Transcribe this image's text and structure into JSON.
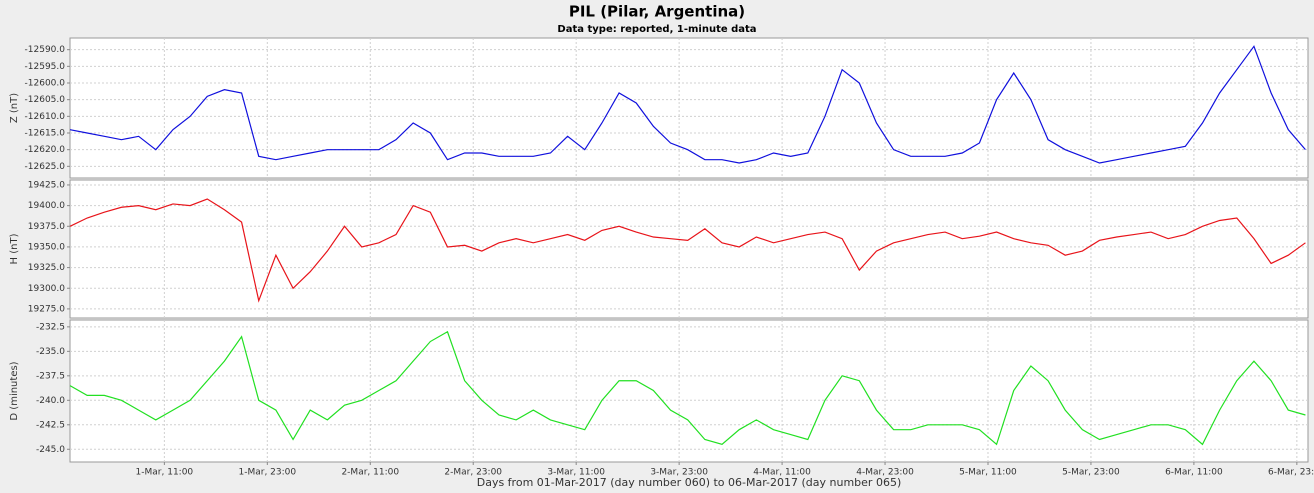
{
  "chart_data": {
    "type": "line",
    "title": "PIL (Pilar, Argentina)",
    "subtitle": "Data type: reported, 1-minute data",
    "xlabel": "Days from 01-Mar-2017 (day number 060) to 06-Mar-2017 (day number 065)",
    "xlim": [
      0,
      144.3
    ],
    "xticks": [
      {
        "value": 11,
        "label": "1-Mar, 11:00"
      },
      {
        "value": 23,
        "label": "1-Mar, 23:00"
      },
      {
        "value": 35,
        "label": "2-Mar, 11:00"
      },
      {
        "value": 47,
        "label": "2-Mar, 23:00"
      },
      {
        "value": 59,
        "label": "3-Mar, 11:00"
      },
      {
        "value": 71,
        "label": "3-Mar, 23:00"
      },
      {
        "value": 83,
        "label": "4-Mar, 11:00"
      },
      {
        "value": 95,
        "label": "4-Mar, 23:00"
      },
      {
        "value": 107,
        "label": "5-Mar, 11:00"
      },
      {
        "value": 119,
        "label": "5-Mar, 23:00"
      },
      {
        "value": 131,
        "label": "6-Mar, 11:00"
      },
      {
        "value": 143,
        "label": "6-Mar, 23:00"
      }
    ],
    "grid": true,
    "x": [
      0,
      2,
      4,
      6,
      8,
      10,
      12,
      14,
      16,
      18,
      20,
      22,
      24,
      26,
      28,
      30,
      32,
      34,
      36,
      38,
      40,
      42,
      44,
      46,
      48,
      50,
      52,
      54,
      56,
      58,
      60,
      62,
      64,
      66,
      68,
      70,
      72,
      74,
      76,
      78,
      80,
      82,
      84,
      86,
      88,
      90,
      92,
      94,
      96,
      98,
      100,
      102,
      104,
      106,
      108,
      110,
      112,
      114,
      116,
      118,
      120,
      122,
      124,
      126,
      128,
      130,
      132,
      134,
      136,
      138,
      140,
      142,
      144
    ],
    "panels": [
      {
        "ylabel": "Z (nT)",
        "ylim": [
          -12628.5,
          -12586.5
        ],
        "yticks": [
          {
            "value": -12590,
            "label": "-12590.0"
          },
          {
            "value": -12595,
            "label": "-12595.0"
          },
          {
            "value": -12600,
            "label": "-12600.0"
          },
          {
            "value": -12605,
            "label": "-12605.0"
          },
          {
            "value": -12610,
            "label": "-12610.0"
          },
          {
            "value": -12615,
            "label": "-12615.0"
          },
          {
            "value": -12620,
            "label": "-12620.0"
          },
          {
            "value": -12625,
            "label": "-12625.0"
          }
        ],
        "series": [
          {
            "color": "#1010dd",
            "values": [
              -12614,
              -12615,
              -12616,
              -12617,
              -12616,
              -12620,
              -12614,
              -12610,
              -12604,
              -12602,
              -12603,
              -12622,
              -12623,
              -12622,
              -12621,
              -12620,
              -12620,
              -12620,
              -12620,
              -12617,
              -12612,
              -12615,
              -12623,
              -12621,
              -12621,
              -12622,
              -12622,
              -12622,
              -12621,
              -12616,
              -12620,
              -12612,
              -12603,
              -12606,
              -12613,
              -12618,
              -12620,
              -12623,
              -12623,
              -12624,
              -12623,
              -12621,
              -12622,
              -12621,
              -12610,
              -12596,
              -12600,
              -12612,
              -12620,
              -12622,
              -12622,
              -12622,
              -12621,
              -12618,
              -12605,
              -12597,
              -12605,
              -12617,
              -12620,
              -12622,
              -12624,
              -12623,
              -12622,
              -12621,
              -12620,
              -12619,
              -12612,
              -12603,
              -12596,
              -12589,
              -12603,
              -12614,
              -12620
            ]
          }
        ]
      },
      {
        "ylabel": "H (nT)",
        "ylim": [
          19264,
          19431
        ],
        "yticks": [
          {
            "value": 19425,
            "label": "19425.0"
          },
          {
            "value": 19400,
            "label": "19400.0"
          },
          {
            "value": 19375,
            "label": "19375.0"
          },
          {
            "value": 19350,
            "label": "19350.0"
          },
          {
            "value": 19325,
            "label": "19325.0"
          },
          {
            "value": 19300,
            "label": "19300.0"
          },
          {
            "value": 19275,
            "label": "19275.0"
          }
        ],
        "series": [
          {
            "color": "#e8141a",
            "values": [
              19375,
              19385,
              19392,
              19398,
              19400,
              19395,
              19402,
              19400,
              19408,
              19395,
              19380,
              19285,
              19340,
              19300,
              19320,
              19345,
              19375,
              19350,
              19355,
              19365,
              19400,
              19392,
              19350,
              19352,
              19345,
              19355,
              19360,
              19355,
              19360,
              19365,
              19358,
              19370,
              19375,
              19368,
              19362,
              19360,
              19358,
              19372,
              19355,
              19350,
              19362,
              19355,
              19360,
              19365,
              19368,
              19360,
              19322,
              19345,
              19355,
              19360,
              19365,
              19368,
              19360,
              19363,
              19368,
              19360,
              19355,
              19352,
              19340,
              19345,
              19358,
              19362,
              19365,
              19368,
              19360,
              19365,
              19375,
              19382,
              19385,
              19360,
              19330,
              19340,
              19355
            ]
          }
        ]
      },
      {
        "ylabel": "D (minutes)",
        "ylim": [
          -246.3,
          -231.8
        ],
        "yticks": [
          -232.5,
          {
            "value": -235,
            "label": "-235.0"
          },
          -237.5,
          {
            "value": -240,
            "label": "-240.0"
          },
          -242.5,
          {
            "value": -245,
            "label": "-245.0"
          }
        ],
        "series": [
          {
            "color": "#22e022",
            "values": [
              -238.5,
              -239.5,
              -239.5,
              -240,
              -241,
              -242,
              -241,
              -240,
              -238,
              -236,
              -233.5,
              -240,
              -241,
              -244,
              -241,
              -242,
              -240.5,
              -240,
              -239,
              -238,
              -236,
              -234,
              -233,
              -238,
              -240,
              -241.5,
              -242,
              -241,
              -242,
              -242.5,
              -243,
              -240,
              -238,
              -238,
              -239,
              -241,
              -242,
              -244,
              -244.5,
              -243,
              -242,
              -243,
              -243.5,
              -244,
              -240,
              -237.5,
              -238,
              -241,
              -243,
              -243,
              -242.5,
              -242.5,
              -242.5,
              -243,
              -244.5,
              -239,
              -236.5,
              -238,
              -241,
              -243,
              -244,
              -243.5,
              -243,
              -242.5,
              -242.5,
              -243,
              -244.5,
              -241,
              -238,
              -236,
              -238,
              -241,
              -241.5
            ]
          }
        ]
      }
    ]
  }
}
